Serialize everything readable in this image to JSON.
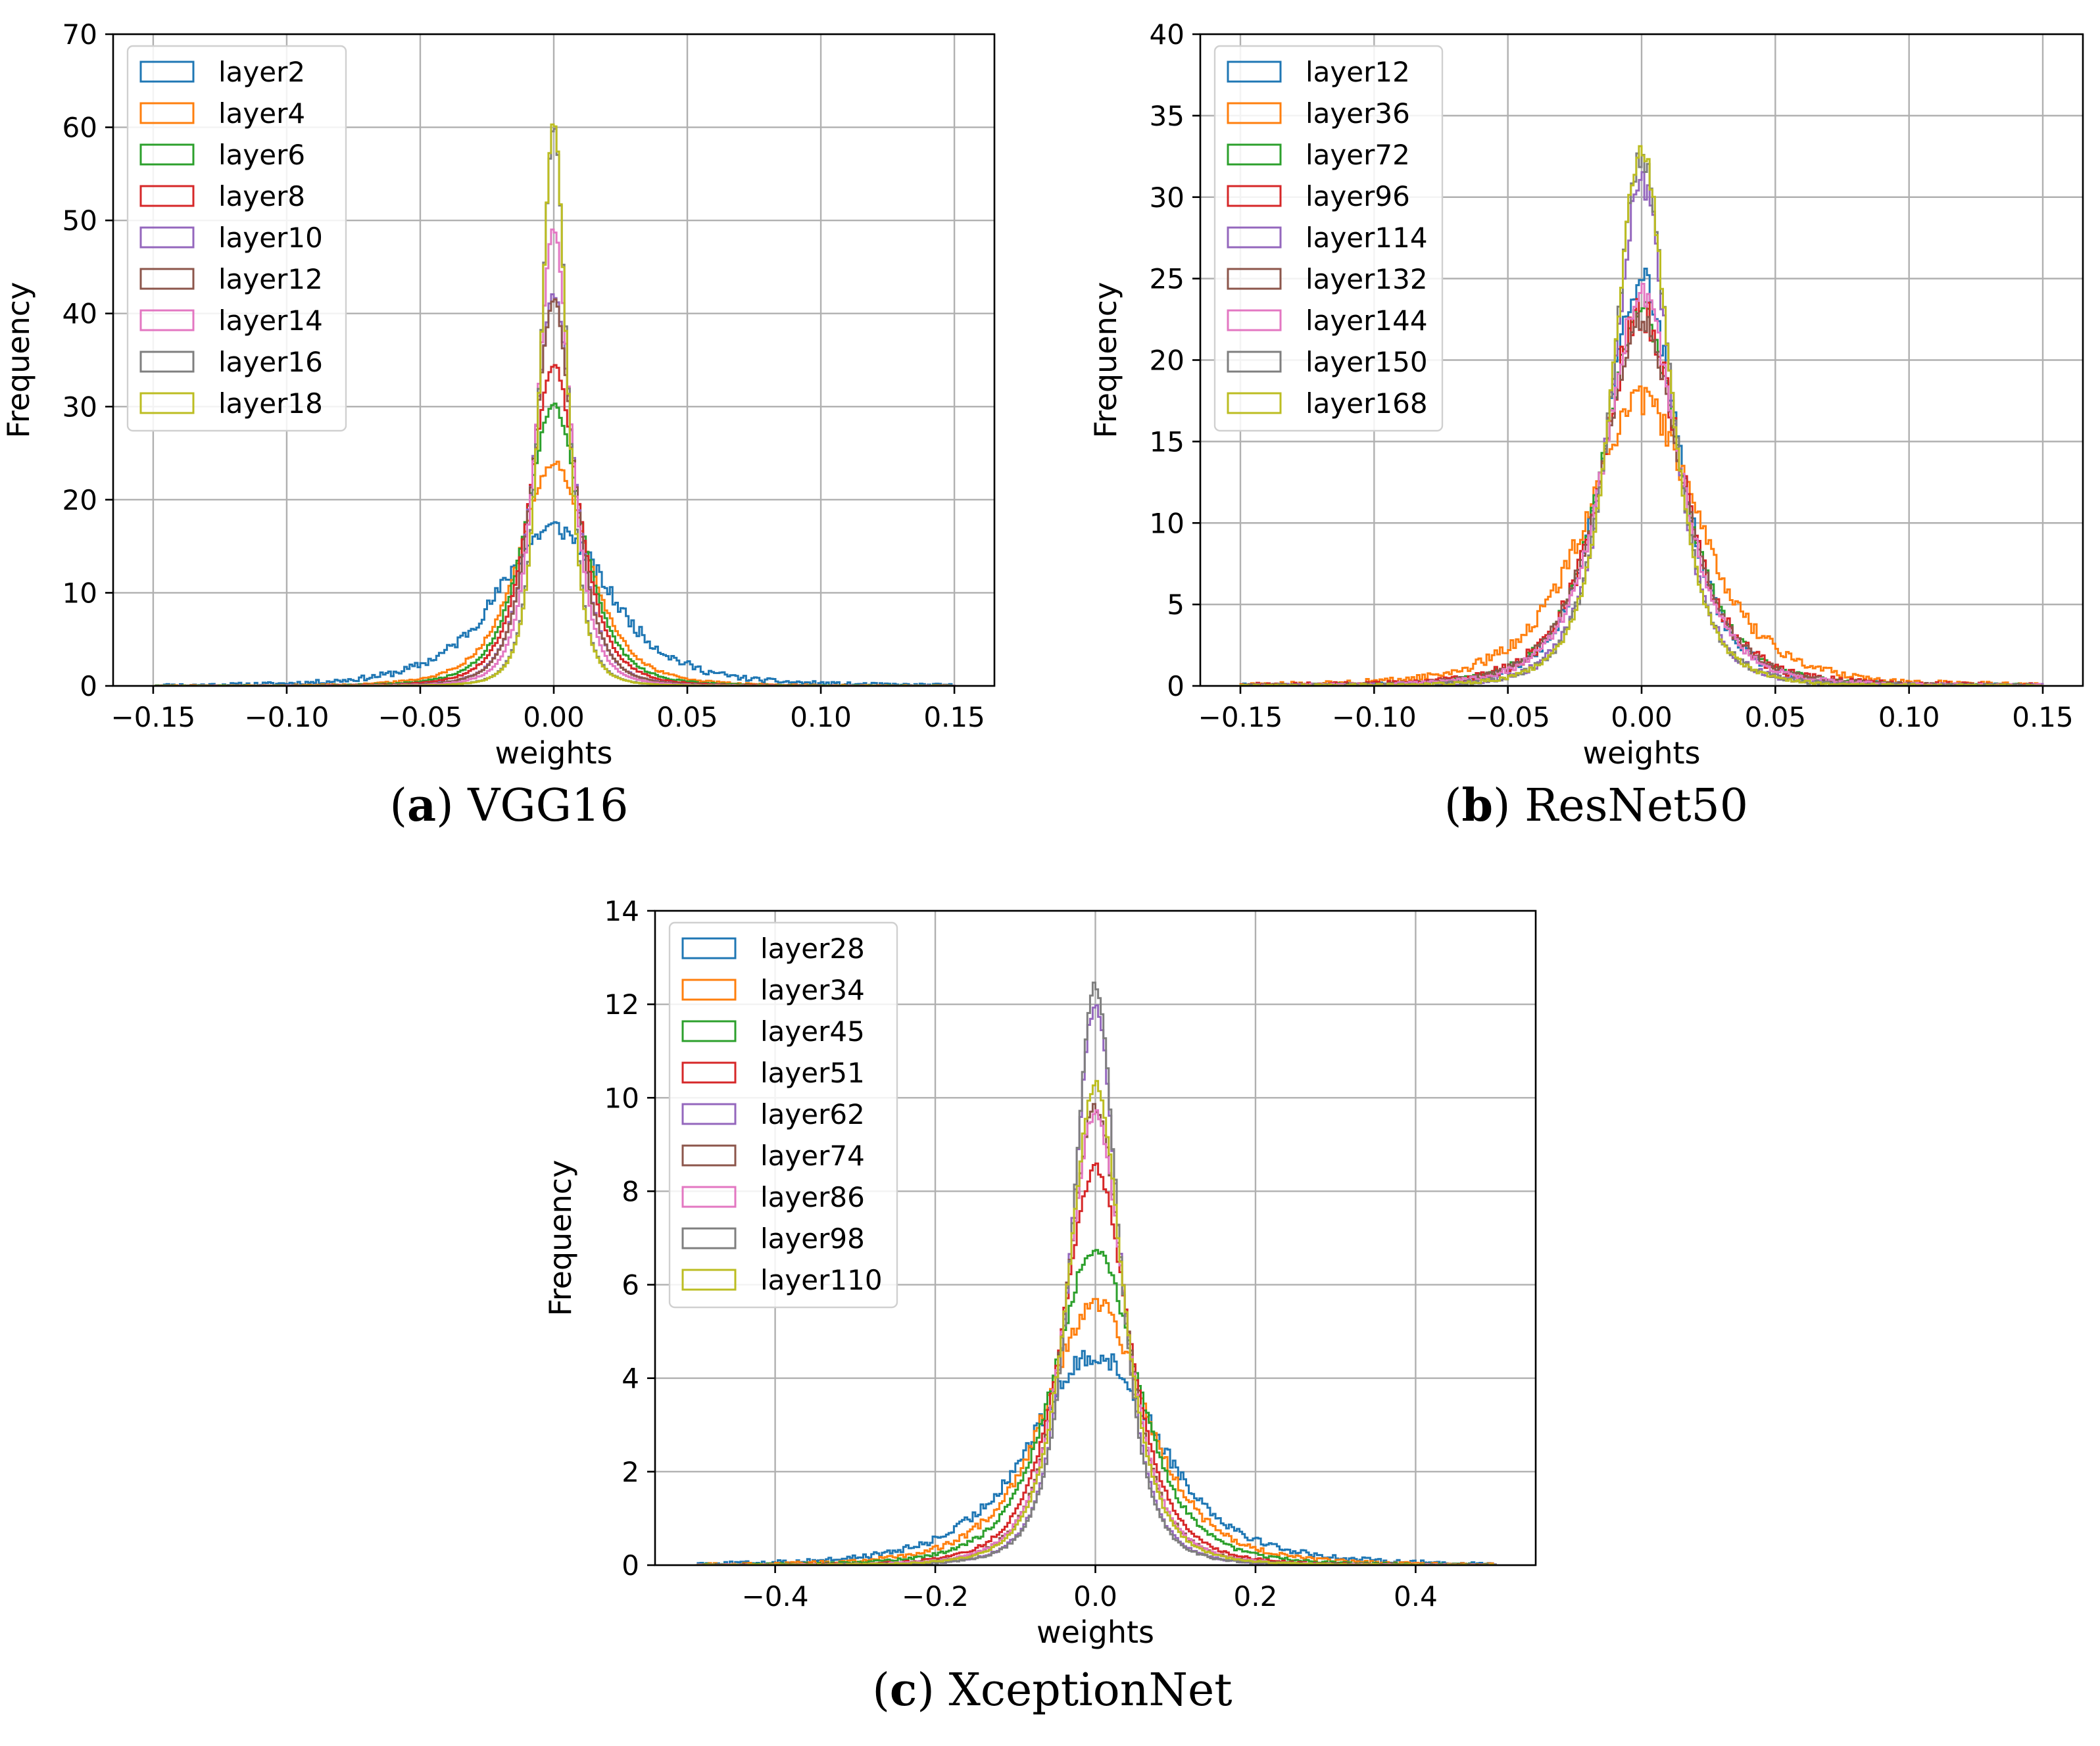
{
  "colors": [
    "#1f77b4",
    "#ff7f0e",
    "#2ca02c",
    "#d62728",
    "#9467bd",
    "#8c564b",
    "#e377c2",
    "#7f7f7f",
    "#bcbd22"
  ],
  "chart_data": [
    {
      "type": "histogram",
      "caption_letter": "a",
      "caption_text": "VGG16",
      "xlabel": "weights",
      "ylabel": "Frequency",
      "xlim": [
        -0.165,
        0.165
      ],
      "ylim": [
        0,
        70
      ],
      "xticks": [
        -0.15,
        -0.1,
        -0.05,
        0.0,
        0.05,
        0.1,
        0.15
      ],
      "xtick_labels": [
        "−0.15",
        "−0.10",
        "−0.05",
        "0.00",
        "0.05",
        "0.10",
        "0.15"
      ],
      "yticks": [
        0,
        10,
        20,
        30,
        40,
        50,
        60,
        70
      ],
      "ytick_labels": [
        "0",
        "10",
        "20",
        "30",
        "40",
        "50",
        "60",
        "70"
      ],
      "grid": true,
      "legend_position": "top-left",
      "data_range": [
        -0.15,
        0.15
      ],
      "bins": 300,
      "series": [
        {
          "name": "layer2",
          "peak": 17,
          "width": 0.022,
          "noise": 1.1
        },
        {
          "name": "layer4",
          "peak": 24,
          "width": 0.0135,
          "noise": 0.5
        },
        {
          "name": "layer6",
          "peak": 30,
          "width": 0.011,
          "noise": 0.4
        },
        {
          "name": "layer8",
          "peak": 34.5,
          "width": 0.0095,
          "noise": 0.35
        },
        {
          "name": "layer10",
          "peak": 42,
          "width": 0.0078,
          "noise": 0.3
        },
        {
          "name": "layer12",
          "peak": 41.5,
          "width": 0.0078,
          "noise": 0.3
        },
        {
          "name": "layer14",
          "peak": 49,
          "width": 0.0066,
          "noise": 0.3
        },
        {
          "name": "layer16",
          "peak": 60,
          "width": 0.0052,
          "noise": 0.25
        },
        {
          "name": "layer18",
          "peak": 60.5,
          "width": 0.0051,
          "noise": 0.25
        }
      ]
    },
    {
      "type": "histogram",
      "caption_letter": "b",
      "caption_text": "ResNet50",
      "xlabel": "weights",
      "ylabel": "Frequency",
      "xlim": [
        -0.165,
        0.165
      ],
      "ylim": [
        0,
        40
      ],
      "xticks": [
        -0.15,
        -0.1,
        -0.05,
        0.0,
        0.05,
        0.1,
        0.15
      ],
      "xtick_labels": [
        "−0.15",
        "−0.10",
        "−0.05",
        "0.00",
        "0.05",
        "0.10",
        "0.15"
      ],
      "yticks": [
        0,
        5,
        10,
        15,
        20,
        25,
        30,
        35,
        40
      ],
      "ytick_labels": [
        "0",
        "5",
        "10",
        "15",
        "20",
        "25",
        "30",
        "35",
        "40"
      ],
      "grid": true,
      "legend_position": "top-left",
      "data_range": [
        -0.15,
        0.15
      ],
      "bins": 300,
      "series": [
        {
          "name": "layer12",
          "peak": 25,
          "width": 0.0145,
          "noise": 0.9
        },
        {
          "name": "layer36",
          "peak": 17.5,
          "width": 0.022,
          "noise": 0.9
        },
        {
          "name": "layer72",
          "peak": 23,
          "width": 0.0155,
          "noise": 0.7
        },
        {
          "name": "layer96",
          "peak": 23,
          "width": 0.0155,
          "noise": 1.2
        },
        {
          "name": "layer114",
          "peak": 31,
          "width": 0.0115,
          "noise": 0.9
        },
        {
          "name": "layer132",
          "peak": 22.5,
          "width": 0.0155,
          "noise": 0.7
        },
        {
          "name": "layer144",
          "peak": 24,
          "width": 0.0145,
          "noise": 0.7
        },
        {
          "name": "layer150",
          "peak": 32.5,
          "width": 0.0112,
          "noise": 0.8
        },
        {
          "name": "layer168",
          "peak": 33,
          "width": 0.011,
          "noise": 0.6
        }
      ]
    },
    {
      "type": "histogram",
      "caption_letter": "c",
      "caption_text": "XceptionNet",
      "xlabel": "weights",
      "ylabel": "Frequency",
      "xlim": [
        -0.55,
        0.55
      ],
      "ylim": [
        0,
        14
      ],
      "xticks": [
        -0.4,
        -0.2,
        0.0,
        0.2,
        0.4
      ],
      "xtick_labels": [
        "−0.4",
        "−0.2",
        "0.0",
        "0.2",
        "0.4"
      ],
      "yticks": [
        0,
        2,
        4,
        6,
        8,
        10,
        12,
        14
      ],
      "ytick_labels": [
        "0",
        "2",
        "4",
        "6",
        "8",
        "10",
        "12",
        "14"
      ],
      "grid": true,
      "legend_position": "top-left",
      "data_range": [
        -0.5,
        0.5
      ],
      "bins": 300,
      "series": [
        {
          "name": "layer28",
          "peak": 4.5,
          "width": 0.085,
          "noise": 0.22
        },
        {
          "name": "layer34",
          "peak": 5.6,
          "width": 0.067,
          "noise": 0.2
        },
        {
          "name": "layer45",
          "peak": 6.8,
          "width": 0.055,
          "noise": 0.15
        },
        {
          "name": "layer51",
          "peak": 8.5,
          "width": 0.044,
          "noise": 0.12
        },
        {
          "name": "layer62",
          "peak": 12.0,
          "width": 0.031,
          "noise": 0.12
        },
        {
          "name": "layer74",
          "peak": 9.8,
          "width": 0.038,
          "noise": 0.12
        },
        {
          "name": "layer86",
          "peak": 9.7,
          "width": 0.038,
          "noise": 0.12
        },
        {
          "name": "layer98",
          "peak": 12.4,
          "width": 0.03,
          "noise": 0.12
        },
        {
          "name": "layer110",
          "peak": 10.3,
          "width": 0.036,
          "noise": 0.1
        }
      ]
    }
  ]
}
